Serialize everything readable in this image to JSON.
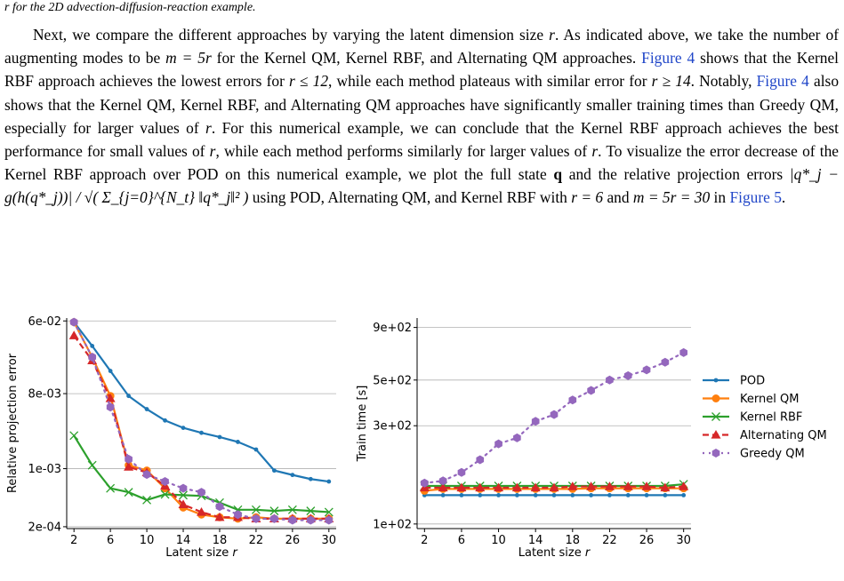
{
  "caption_tail": "r for the 2D advection-diffusion-reaction example.",
  "paragraph": {
    "s1": "Next, we compare the different approaches by varying the latent dimension size ",
    "s1_r": "r",
    "s2": ". As indicated above, we take the number of augmenting modes to be ",
    "s2_m": "m = 5r",
    "s3": " for the Kernel QM, Kernel RBF, and Alternating QM approaches. ",
    "link1": "Figure 4",
    "s4": " shows that the Kernel RBF approach achieves the lowest errors for ",
    "s4_math": "r ≤ 12",
    "s5": ", while each method plateaus with similar error for ",
    "s5_math": "r ≥ 14",
    "s6": ". Notably, ",
    "link2": "Figure 4",
    "s7": " also shows that the Kernel QM, Kernel RBF, and Alternating QM approaches have significantly smaller training times than Greedy QM, especially for larger values of ",
    "s7_r": "r",
    "s8": ". For this numerical example, we can conclude that the Kernel RBF approach achieves the best performance for small values of ",
    "s8_r": "r",
    "s9": ", while each method performs similarly for larger values of ",
    "s9_r": "r",
    "s10": ". To visualize the error decrease of the Kernel RBF approach over POD on this numerical example, we plot the full state ",
    "s10_q": "q",
    "s11": " and the relative projection errors ",
    "s11_math": "|q*_j − g(h(q*_j))| / √( Σ_{j=0}^{N_t} ‖q*_j‖² )",
    "s12": " using POD, Alternating QM, and Kernel RBF with ",
    "s12_math": "r = 6",
    "s13": " and ",
    "s13_math": "m = 5r = 30",
    "s14": " in ",
    "link3": "Figure 5",
    "s15": "."
  },
  "chart_data": [
    {
      "type": "line",
      "xlabel": "Latent size r",
      "ylabel": "Relative projection error",
      "yscale": "log",
      "ylim": [
        0.00019,
        0.065
      ],
      "xlim": [
        1.2,
        30.8
      ],
      "xticks": [
        2,
        6,
        10,
        14,
        18,
        22,
        26,
        30
      ],
      "yticks": [
        {
          "value": 0.06,
          "label": "6e-02"
        },
        {
          "value": 0.008,
          "label": "8e-03"
        },
        {
          "value": 0.001,
          "label": "1e-03"
        },
        {
          "value": 0.0002,
          "label": "2e-04"
        }
      ],
      "grid": "horizontal",
      "series": [
        {
          "name": "POD",
          "color": "#1f77b4",
          "marker": "dot",
          "style": "solid",
          "x": [
            2,
            4,
            6,
            8,
            10,
            12,
            14,
            16,
            18,
            20,
            22,
            24,
            26,
            28,
            30
          ],
          "y": [
            0.058,
            0.03,
            0.015,
            0.0075,
            0.0052,
            0.0038,
            0.0031,
            0.0027,
            0.0024,
            0.0021,
            0.0017,
            0.00095,
            0.00084,
            0.00075,
            0.0007
          ]
        },
        {
          "name": "Kernel QM",
          "color": "#ff7f0e",
          "marker": "circle",
          "style": "solid",
          "x": [
            2,
            4,
            6,
            8,
            10,
            12,
            14,
            16,
            18,
            20,
            22,
            24,
            26,
            28,
            30
          ],
          "y": [
            0.058,
            0.022,
            0.0075,
            0.0011,
            0.00095,
            0.00058,
            0.00034,
            0.00028,
            0.00026,
            0.00025,
            0.00026,
            0.00025,
            0.00025,
            0.00025,
            0.00025
          ]
        },
        {
          "name": "Kernel RBF",
          "color": "#2ca02c",
          "marker": "x",
          "style": "solid",
          "x": [
            2,
            4,
            6,
            8,
            10,
            12,
            14,
            16,
            18,
            20,
            22,
            24,
            26,
            28,
            30
          ],
          "y": [
            0.0025,
            0.0011,
            0.00058,
            0.00052,
            0.00042,
            0.00049,
            0.00048,
            0.00047,
            0.00039,
            0.00032,
            0.00032,
            0.00031,
            0.00032,
            0.00031,
            0.0003
          ]
        },
        {
          "name": "Alternating QM",
          "color": "#d62728",
          "marker": "triangle",
          "style": "dashed",
          "x": [
            2,
            4,
            6,
            8,
            10,
            12,
            14,
            16,
            18,
            20,
            22,
            24,
            26,
            28,
            30
          ],
          "y": [
            0.04,
            0.02,
            0.007,
            0.00105,
            0.0009,
            0.00062,
            0.00037,
            0.0003,
            0.00026,
            0.00026,
            0.00025,
            0.00025,
            0.00025,
            0.00025,
            0.00025
          ]
        },
        {
          "name": "Greedy QM",
          "color": "#9467bd",
          "marker": "hexagon",
          "style": "dotted",
          "x": [
            2,
            4,
            6,
            8,
            10,
            12,
            14,
            16,
            18,
            20,
            22,
            24,
            26,
            28,
            30
          ],
          "y": [
            0.058,
            0.022,
            0.0055,
            0.0013,
            0.00085,
            0.0007,
            0.00058,
            0.00052,
            0.00035,
            0.00028,
            0.00025,
            0.00025,
            0.00024,
            0.00024,
            0.00024
          ]
        }
      ]
    },
    {
      "type": "line",
      "xlabel": "Latent size r",
      "ylabel": "Train time [s]",
      "yscale": "log",
      "ylim": [
        95,
        1000
      ],
      "xlim": [
        1.2,
        30.8
      ],
      "xticks": [
        2,
        6,
        10,
        14,
        18,
        22,
        26,
        30
      ],
      "yticks": [
        {
          "value": 900,
          "label": "9e+02"
        },
        {
          "value": 500,
          "label": "5e+02"
        },
        {
          "value": 300,
          "label": "3e+02"
        },
        {
          "value": 100,
          "label": "1e+02"
        }
      ],
      "grid": "horizontal",
      "legend": "right",
      "series": [
        {
          "name": "POD",
          "color": "#1f77b4",
          "marker": "dot",
          "style": "solid",
          "x": [
            2,
            4,
            6,
            8,
            10,
            12,
            14,
            16,
            18,
            20,
            22,
            24,
            26,
            28,
            30
          ],
          "y": [
            138,
            138,
            138,
            138,
            138,
            138,
            138,
            138,
            138,
            138,
            138,
            138,
            138,
            138,
            138
          ]
        },
        {
          "name": "Kernel QM",
          "color": "#ff7f0e",
          "marker": "circle",
          "style": "solid",
          "x": [
            2,
            4,
            6,
            8,
            10,
            12,
            14,
            16,
            18,
            20,
            22,
            24,
            26,
            28,
            30
          ],
          "y": [
            145,
            148,
            148,
            148,
            148,
            148,
            148,
            148,
            148,
            149,
            149,
            149,
            149,
            149,
            149
          ]
        },
        {
          "name": "Kernel RBF",
          "color": "#2ca02c",
          "marker": "x",
          "style": "solid",
          "x": [
            2,
            4,
            6,
            8,
            10,
            12,
            14,
            16,
            18,
            20,
            22,
            24,
            26,
            28,
            30
          ],
          "y": [
            153,
            153,
            153,
            153,
            153,
            153,
            153,
            153,
            153,
            153,
            153,
            153,
            153,
            153,
            156
          ]
        },
        {
          "name": "Alternating QM",
          "color": "#d62728",
          "marker": "triangle",
          "style": "dashed",
          "x": [
            2,
            4,
            6,
            8,
            10,
            12,
            14,
            16,
            18,
            20,
            22,
            24,
            26,
            28,
            30
          ],
          "y": [
            150,
            150,
            150,
            150,
            150,
            150,
            150,
            150,
            152,
            152,
            152,
            152,
            152,
            150,
            152
          ]
        },
        {
          "name": "Greedy QM",
          "color": "#9467bd",
          "marker": "hexagon",
          "style": "dotted",
          "x": [
            2,
            4,
            6,
            8,
            10,
            12,
            14,
            16,
            18,
            20,
            22,
            24,
            26,
            28,
            30
          ],
          "y": [
            158,
            162,
            178,
            205,
            245,
            262,
            315,
            340,
            400,
            445,
            500,
            525,
            560,
            610,
            680
          ]
        }
      ]
    }
  ]
}
